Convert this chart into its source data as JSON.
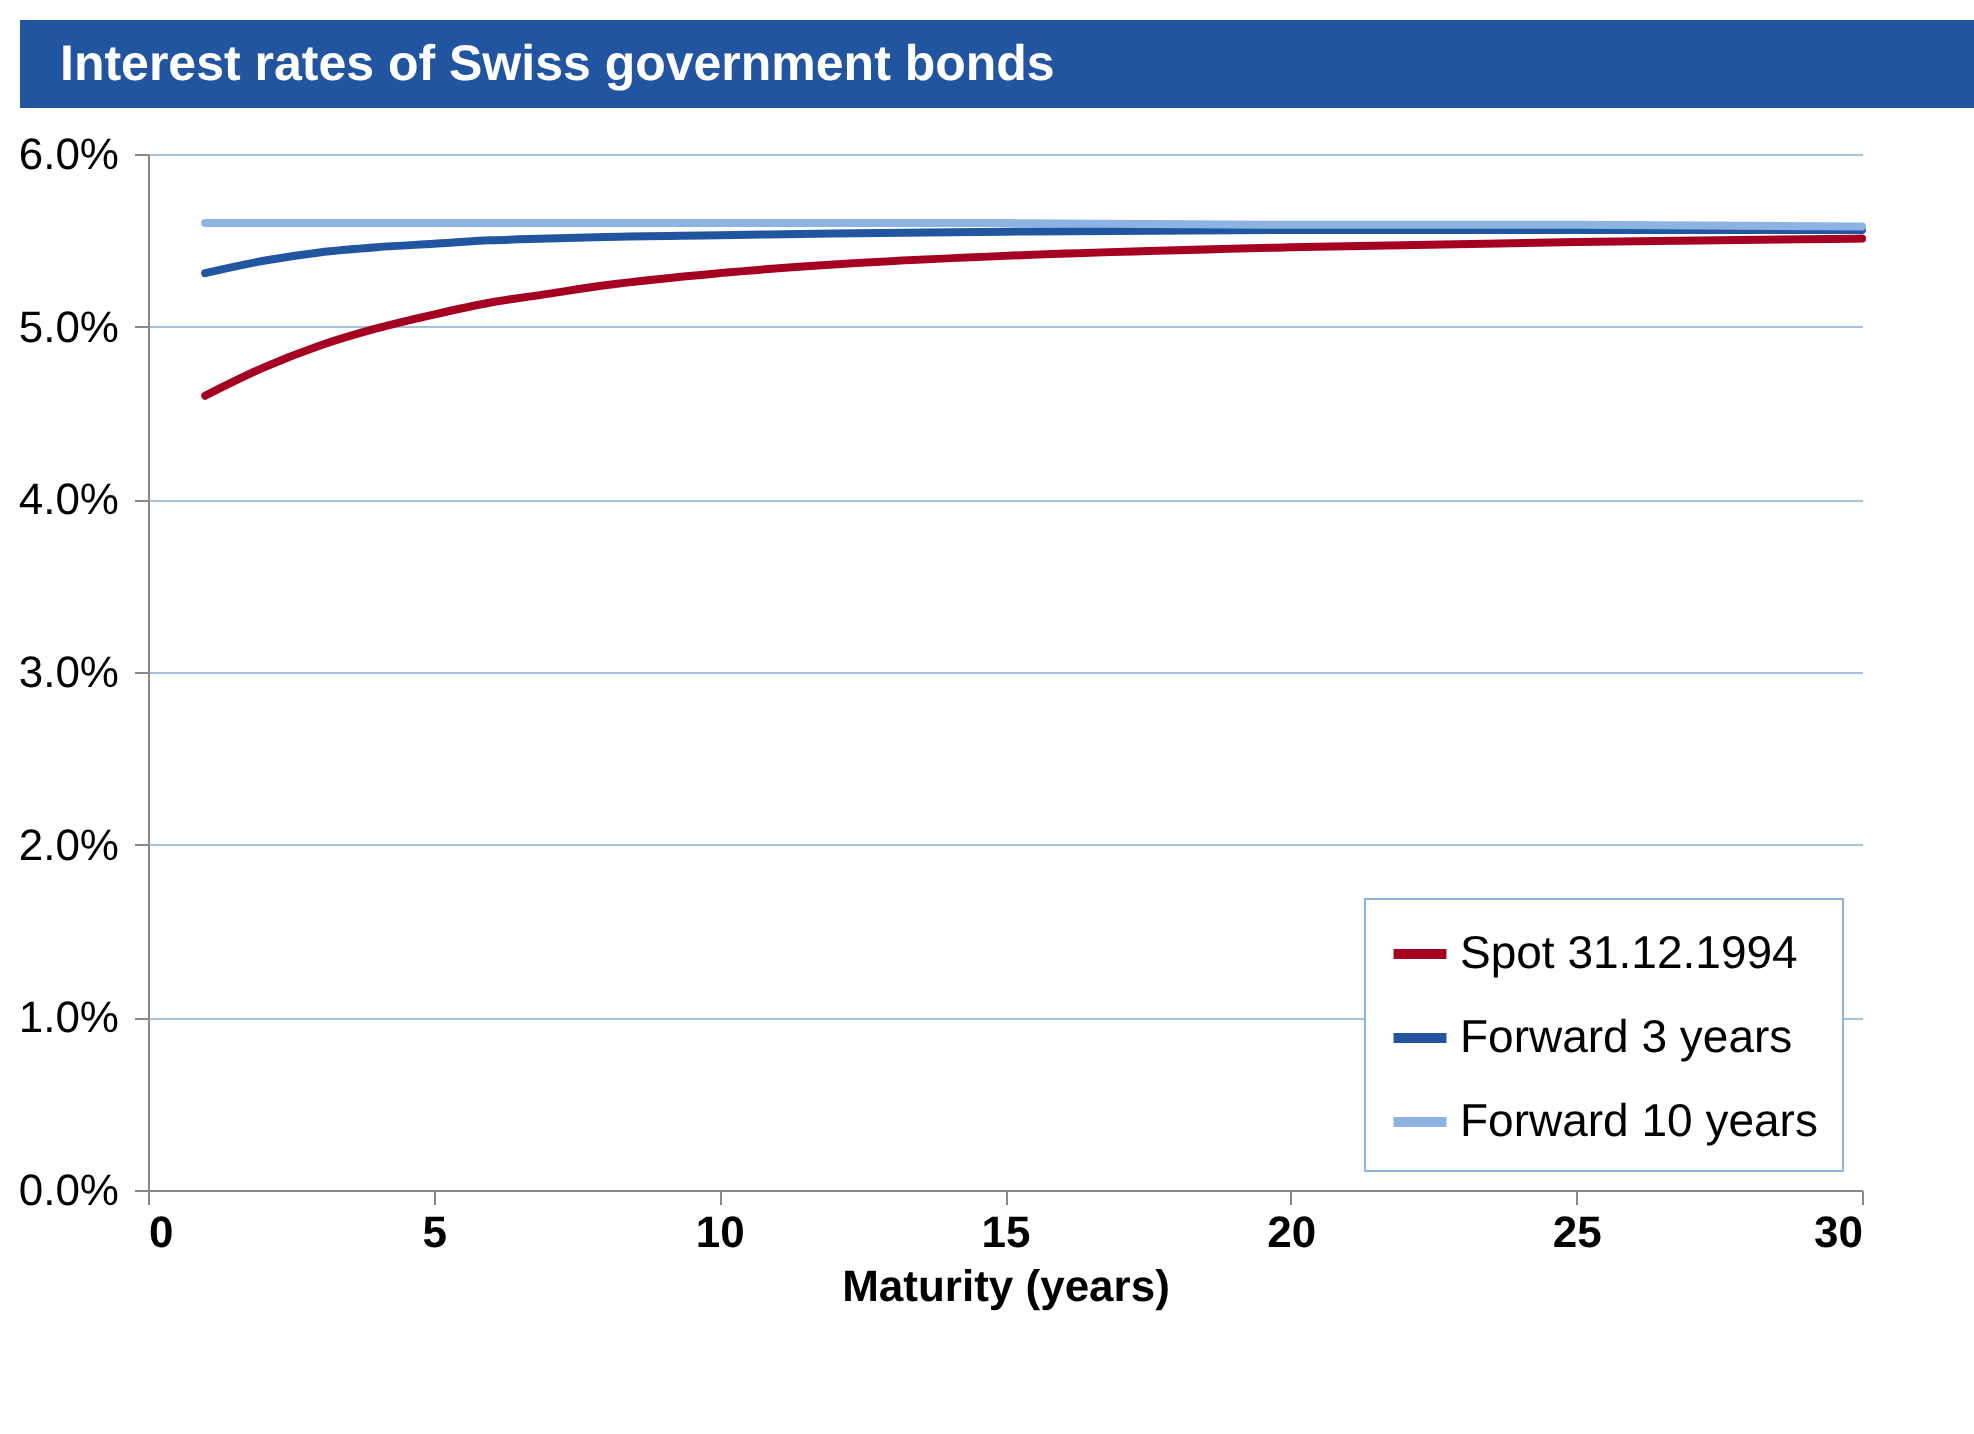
{
  "chart_data": {
    "type": "line",
    "title": "Interest rates of Swiss government bonds",
    "xlabel": "Maturity (years)",
    "x": [
      1,
      2,
      3,
      4,
      5,
      6,
      7,
      8,
      10,
      12,
      15,
      20,
      25,
      30
    ],
    "series": [
      {
        "name": "Spot 31.12.1994",
        "color": "#a50021",
        "values": [
          4.6,
          4.76,
          4.89,
          4.99,
          5.07,
          5.14,
          5.19,
          5.24,
          5.31,
          5.36,
          5.41,
          5.46,
          5.49,
          5.51
        ]
      },
      {
        "name": "Forward 3 years",
        "color": "#2155a0",
        "values": [
          5.31,
          5.38,
          5.43,
          5.46,
          5.48,
          5.5,
          5.51,
          5.52,
          5.53,
          5.54,
          5.55,
          5.56,
          5.56,
          5.56
        ]
      },
      {
        "name": "Forward 10 years",
        "color": "#8db3e2",
        "values": [
          5.6,
          5.6,
          5.6,
          5.6,
          5.6,
          5.6,
          5.6,
          5.6,
          5.6,
          5.6,
          5.6,
          5.59,
          5.59,
          5.58
        ]
      }
    ],
    "xlim": [
      0,
      30
    ],
    "xticks": [
      0,
      5,
      10,
      15,
      20,
      25,
      30
    ],
    "ylim": [
      0,
      6
    ],
    "yticks": [
      {
        "value": 0,
        "label": "0.0%"
      },
      {
        "value": 1,
        "label": "1.0%"
      },
      {
        "value": 2,
        "label": "2.0%"
      },
      {
        "value": 3,
        "label": "3.0%"
      },
      {
        "value": 4,
        "label": "4.0%"
      },
      {
        "value": 5,
        "label": "5.0%"
      },
      {
        "value": 6,
        "label": "6.0%"
      }
    ],
    "grid": "y",
    "legend": "bottom right",
    "marker": "none",
    "line_style": "solid"
  }
}
